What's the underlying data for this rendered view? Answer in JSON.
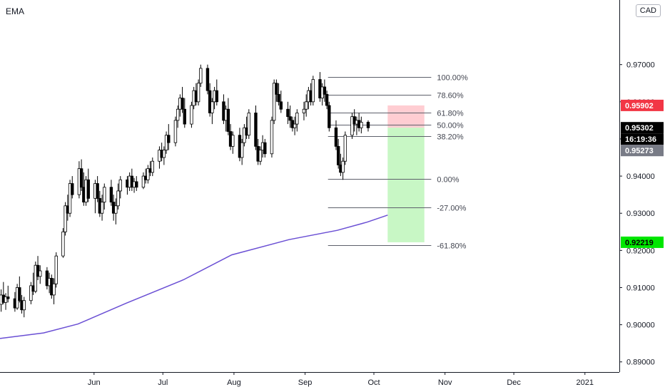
{
  "indicator": {
    "label": "EMA"
  },
  "currency": {
    "label": "CAD"
  },
  "chart_data": {
    "type": "candlestick",
    "y_axis": {
      "ticks": [
        {
          "value": 0.97,
          "label": "0.97000"
        },
        {
          "value": 0.96,
          "label": "0.96000"
        },
        {
          "value": 0.95,
          "label": "0.95000"
        },
        {
          "value": 0.94,
          "label": "0.94000"
        },
        {
          "value": 0.93,
          "label": "0.93000"
        },
        {
          "value": 0.92,
          "label": "0.92000"
        },
        {
          "value": 0.91,
          "label": "0.91000"
        },
        {
          "value": 0.9,
          "label": "0.90000"
        },
        {
          "value": 0.89,
          "label": "0.89000"
        }
      ],
      "range": [
        0.8888,
        0.9778
      ]
    },
    "x_axis": {
      "range": [
        "2020-04-21",
        "2021-01-16"
      ],
      "ticks": [
        {
          "date": "2020-06-01",
          "label": "Jun"
        },
        {
          "date": "2020-07-01",
          "label": "Jul"
        },
        {
          "date": "2020-08-01",
          "label": "Aug"
        },
        {
          "date": "2020-09-01",
          "label": "Sep"
        },
        {
          "date": "2020-10-01",
          "label": "Oct"
        },
        {
          "date": "2020-11-01",
          "label": "Nov"
        },
        {
          "date": "2020-12-01",
          "label": "Dec"
        },
        {
          "date": "2021-01-01",
          "label": "2021"
        }
      ]
    },
    "price_tags": [
      {
        "value": 0.95902,
        "label": "0.95902",
        "color": "#f23645"
      },
      {
        "value": 0.95302,
        "label": "0.95302",
        "color": "#000000",
        "countdown": "16:19:36"
      },
      {
        "value": 0.95273,
        "label": "0.95273",
        "color": "#787b86"
      },
      {
        "value": 0.92219,
        "label": "0.92219",
        "color": "#00e600"
      }
    ],
    "fib_levels": [
      {
        "label": "100.00%",
        "value": 0.9667
      },
      {
        "label": "78.60%",
        "value": 0.9618
      },
      {
        "label": "61.80%",
        "value": 0.9571
      },
      {
        "label": "50.00%",
        "value": 0.9539
      },
      {
        "label": "38.20%",
        "value": 0.9508
      },
      {
        "label": "0.00%",
        "value": 0.9393
      },
      {
        "label": "-27.00%",
        "value": 0.9316
      },
      {
        "label": "-61.80%",
        "value": 0.9215
      }
    ],
    "fib_range": {
      "start": "2020-09-11",
      "end": "2020-10-26"
    },
    "position": {
      "start": "2020-10-07",
      "end": "2020-10-23",
      "stop": 0.95902,
      "entry": 0.95302,
      "target": 0.92219,
      "stop_color": "#ffcdd2",
      "target_color": "#c8f7c5"
    },
    "ema_series": {
      "color": "#6a4fd4",
      "dates": [
        "2020-04-21",
        "2020-05-10",
        "2020-05-25",
        "2020-06-15",
        "2020-07-10",
        "2020-07-31",
        "2020-08-25",
        "2020-09-15",
        "2020-09-28",
        "2020-10-07"
      ],
      "values": [
        0.8963,
        0.8978,
        0.9002,
        0.9058,
        0.9121,
        0.9188,
        0.9229,
        0.9254,
        0.9276,
        0.9295
      ]
    },
    "candles": {
      "start": "2020-04-21",
      "ohlc": [
        [
          0.9055,
          0.9095,
          0.9035,
          0.908
        ],
        [
          0.908,
          0.9115,
          0.9055,
          0.906
        ],
        [
          0.906,
          0.9085,
          0.904,
          0.9075
        ],
        [
          0.9075,
          0.9105,
          0.906,
          0.907
        ],
        [
          0.907,
          0.9088,
          0.9035,
          0.9045
        ],
        [
          0.9045,
          0.911,
          0.904,
          0.91
        ],
        [
          0.91,
          0.913,
          0.906,
          0.9065
        ],
        [
          0.9065,
          0.908,
          0.903,
          0.904
        ],
        [
          0.904,
          0.9075,
          0.902,
          0.9065
        ],
        [
          0.9065,
          0.9115,
          0.9055,
          0.9105
        ],
        [
          0.9105,
          0.914,
          0.908,
          0.909
        ],
        [
          0.909,
          0.917,
          0.9085,
          0.916
        ],
        [
          0.916,
          0.9185,
          0.912,
          0.913
        ],
        [
          0.913,
          0.916,
          0.911,
          0.9145
        ],
        [
          0.9145,
          0.9155,
          0.9095,
          0.9105
        ],
        [
          0.9105,
          0.914,
          0.9085,
          0.9125
        ],
        [
          0.9125,
          0.9135,
          0.907,
          0.908
        ],
        [
          0.908,
          0.9125,
          0.9055,
          0.911
        ],
        [
          0.911,
          0.9195,
          0.91,
          0.9185
        ],
        [
          0.9185,
          0.926,
          0.918,
          0.925
        ],
        [
          0.925,
          0.933,
          0.924,
          0.932
        ],
        [
          0.932,
          0.935,
          0.928,
          0.93
        ],
        [
          0.93,
          0.939,
          0.929,
          0.938
        ],
        [
          0.938,
          0.94,
          0.934,
          0.935
        ],
        [
          0.935,
          0.944,
          0.934,
          0.942
        ],
        [
          0.942,
          0.9445,
          0.936,
          0.937
        ],
        [
          0.937,
          0.941,
          0.932,
          0.933
        ],
        [
          0.933,
          0.94,
          0.932,
          0.939
        ],
        [
          0.939,
          0.942,
          0.933,
          0.934
        ],
        [
          0.934,
          0.939,
          0.93,
          0.938
        ],
        [
          0.938,
          0.94,
          0.933,
          0.934
        ],
        [
          0.934,
          0.936,
          0.929,
          0.93
        ],
        [
          0.93,
          0.935,
          0.928,
          0.933
        ],
        [
          0.933,
          0.938,
          0.931,
          0.937
        ],
        [
          0.937,
          0.939,
          0.932,
          0.933
        ],
        [
          0.933,
          0.935,
          0.928,
          0.93
        ],
        [
          0.93,
          0.934,
          0.927,
          0.932
        ],
        [
          0.932,
          0.938,
          0.931,
          0.936
        ],
        [
          0.936,
          0.94,
          0.934,
          0.939
        ],
        [
          0.939,
          0.94,
          0.935,
          0.937
        ],
        [
          0.937,
          0.941,
          0.936,
          0.94
        ],
        [
          0.94,
          0.942,
          0.936,
          0.937
        ],
        [
          0.937,
          0.9395,
          0.9355,
          0.9385
        ],
        [
          0.9385,
          0.94,
          0.936,
          0.937
        ],
        [
          0.937,
          0.941,
          0.9365,
          0.94
        ],
        [
          0.94,
          0.942,
          0.938,
          0.939
        ],
        [
          0.939,
          0.943,
          0.938,
          0.942
        ],
        [
          0.942,
          0.944,
          0.94,
          0.941
        ],
        [
          0.941,
          0.945,
          0.94,
          0.944
        ],
        [
          0.944,
          0.948,
          0.942,
          0.947
        ],
        [
          0.947,
          0.949,
          0.944,
          0.945
        ],
        [
          0.945,
          0.948,
          0.943,
          0.947
        ],
        [
          0.947,
          0.952,
          0.946,
          0.951
        ],
        [
          0.951,
          0.954,
          0.947,
          0.949
        ],
        [
          0.949,
          0.956,
          0.948,
          0.955
        ],
        [
          0.955,
          0.959,
          0.953,
          0.958
        ],
        [
          0.958,
          0.962,
          0.956,
          0.961
        ],
        [
          0.961,
          0.964,
          0.957,
          0.958
        ],
        [
          0.958,
          0.961,
          0.953,
          0.954
        ],
        [
          0.954,
          0.96,
          0.953,
          0.959
        ],
        [
          0.959,
          0.964,
          0.958,
          0.963
        ],
        [
          0.963,
          0.965,
          0.959,
          0.96
        ],
        [
          0.96,
          0.966,
          0.959,
          0.965
        ],
        [
          0.965,
          0.97,
          0.964,
          0.969
        ],
        [
          0.969,
          0.97,
          0.962,
          0.963
        ],
        [
          0.963,
          0.965,
          0.956,
          0.957
        ],
        [
          0.957,
          0.961,
          0.954,
          0.96
        ],
        [
          0.96,
          0.964,
          0.958,
          0.963
        ],
        [
          0.963,
          0.966,
          0.959,
          0.96
        ],
        [
          0.96,
          0.962,
          0.954,
          0.955
        ],
        [
          0.955,
          0.959,
          0.952,
          0.958
        ],
        [
          0.958,
          0.961,
          0.951,
          0.952
        ],
        [
          0.952,
          0.954,
          0.947,
          0.948
        ],
        [
          0.948,
          0.952,
          0.946,
          0.951
        ],
        [
          0.951,
          0.953,
          0.944,
          0.945
        ],
        [
          0.945,
          0.95,
          0.943,
          0.949
        ],
        [
          0.949,
          0.954,
          0.948,
          0.953
        ],
        [
          0.953,
          0.956,
          0.95,
          0.951
        ],
        [
          0.951,
          0.958,
          0.95,
          0.957
        ],
        [
          0.957,
          0.959,
          0.947,
          0.948
        ],
        [
          0.948,
          0.95,
          0.943,
          0.944
        ],
        [
          0.944,
          0.948,
          0.943,
          0.947
        ],
        [
          0.947,
          0.951,
          0.945,
          0.949
        ],
        [
          0.949,
          0.95,
          0.945,
          0.946
        ],
        [
          0.946,
          0.956,
          0.945,
          0.955
        ],
        [
          0.955,
          0.966,
          0.954,
          0.965
        ],
        [
          0.965,
          0.966,
          0.96,
          0.962
        ],
        [
          0.962,
          0.965,
          0.959,
          0.96
        ],
        [
          0.96,
          0.963,
          0.957,
          0.958
        ],
        [
          0.958,
          0.96,
          0.954,
          0.956
        ],
        [
          0.956,
          0.959,
          0.953,
          0.955
        ],
        [
          0.955,
          0.956,
          0.952,
          0.953
        ],
        [
          0.953,
          0.956,
          0.951,
          0.954
        ],
        [
          0.954,
          0.958,
          0.952,
          0.957
        ],
        [
          0.957,
          0.96,
          0.955,
          0.958
        ],
        [
          0.958,
          0.962,
          0.956,
          0.96
        ],
        [
          0.96,
          0.964,
          0.958,
          0.963
        ],
        [
          0.963,
          0.965,
          0.959,
          0.96
        ],
        [
          0.96,
          0.967,
          0.959,
          0.966
        ],
        [
          0.966,
          0.968,
          0.96,
          0.961
        ],
        [
          0.961,
          0.965,
          0.959,
          0.964
        ],
        [
          0.964,
          0.966,
          0.96,
          0.962
        ],
        [
          0.962,
          0.963,
          0.958,
          0.959
        ],
        [
          0.959,
          0.96,
          0.952,
          0.953
        ],
        [
          0.953,
          0.955,
          0.947,
          0.948
        ],
        [
          0.948,
          0.95,
          0.942,
          0.943
        ],
        [
          0.943,
          0.946,
          0.94,
          0.941
        ],
        [
          0.941,
          0.945,
          0.939,
          0.944
        ],
        [
          0.944,
          0.952,
          0.943,
          0.951
        ],
        [
          0.951,
          0.957,
          0.95,
          0.956
        ],
        [
          0.956,
          0.958,
          0.952,
          0.954
        ],
        [
          0.954,
          0.956,
          0.951,
          0.955
        ],
        [
          0.955,
          0.957,
          0.952,
          0.953
        ],
        [
          0.953,
          0.956,
          0.9515,
          0.9545
        ],
        [
          0.9545,
          0.955,
          0.952,
          0.953
        ]
      ]
    }
  }
}
